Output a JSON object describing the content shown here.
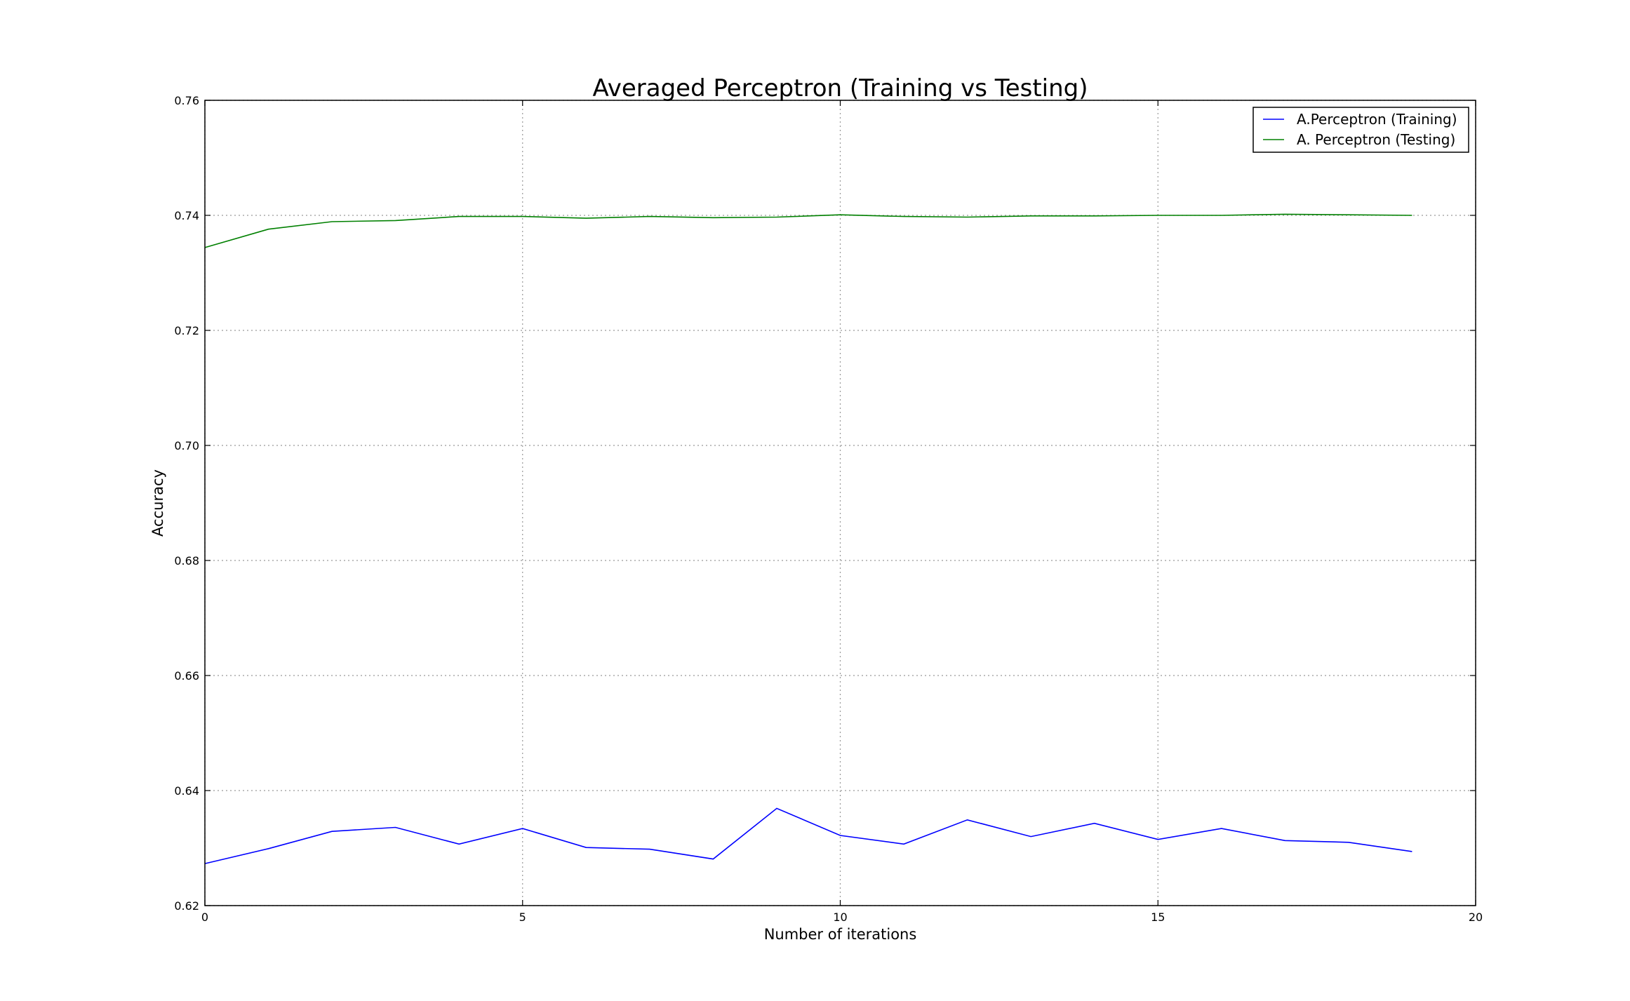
{
  "chart_data": {
    "type": "line",
    "title": "Averaged Perceptron (Training vs Testing)",
    "xlabel": "Number of iterations",
    "ylabel": "Accuracy",
    "xlim": [
      0,
      20
    ],
    "ylim": [
      0.62,
      0.76
    ],
    "xticks": [
      "0",
      "5",
      "10",
      "15",
      "20"
    ],
    "yticks": [
      "0.62",
      "0.64",
      "0.66",
      "0.68",
      "0.70",
      "0.72",
      "0.74",
      "0.76"
    ],
    "grid": true,
    "legend_position": "top-right",
    "x": [
      0,
      1,
      2,
      3,
      4,
      5,
      6,
      7,
      8,
      9,
      10,
      11,
      12,
      13,
      14,
      15,
      16,
      17,
      18,
      19
    ],
    "series": [
      {
        "name": "A.Perceptron (Training)",
        "color": "#0000ff",
        "values": [
          0.6273,
          0.6299,
          0.6329,
          0.6336,
          0.6307,
          0.6334,
          0.6301,
          0.6298,
          0.6281,
          0.6369,
          0.6322,
          0.6307,
          0.6349,
          0.632,
          0.6343,
          0.6315,
          0.6334,
          0.6313,
          0.631,
          0.6294
        ]
      },
      {
        "name": "A. Perceptron (Testing)",
        "color": "#008000",
        "values": [
          0.7344,
          0.7376,
          0.7389,
          0.7391,
          0.7398,
          0.7398,
          0.7395,
          0.7398,
          0.7396,
          0.7397,
          0.7401,
          0.7398,
          0.7397,
          0.7399,
          0.7399,
          0.74,
          0.74,
          0.7402,
          0.7401,
          0.74
        ]
      }
    ]
  }
}
